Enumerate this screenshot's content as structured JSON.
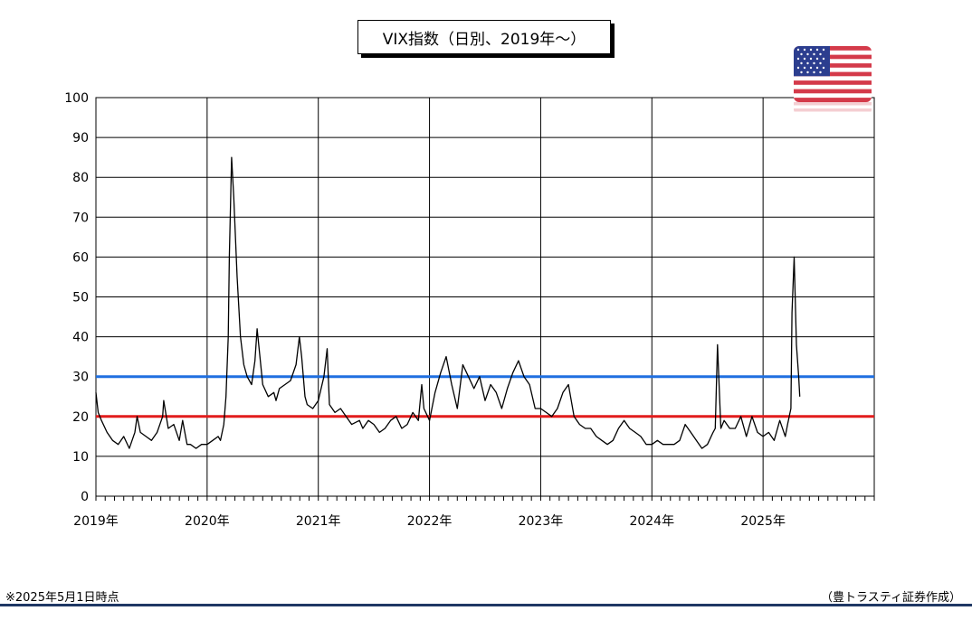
{
  "chart_data": {
    "type": "line",
    "title": "VIX指数（日別、2019年～）",
    "ylim": [
      0,
      100
    ],
    "yticks": [
      "0",
      "10",
      "20",
      "30",
      "40",
      "50",
      "60",
      "70",
      "80",
      "90",
      "100"
    ],
    "xlim": [
      2019.0,
      2026.0
    ],
    "xticks": [
      {
        "x": 2019,
        "label": "2019年"
      },
      {
        "x": 2020,
        "label": "2020年"
      },
      {
        "x": 2021,
        "label": "2021年"
      },
      {
        "x": 2022,
        "label": "2022年"
      },
      {
        "x": 2023,
        "label": "2023年"
      },
      {
        "x": 2024,
        "label": "2024年"
      },
      {
        "x": 2025,
        "label": "2025年"
      }
    ],
    "grid": true,
    "reference_lines": [
      {
        "value": 30,
        "color": "#1f6fe0"
      },
      {
        "value": 20,
        "color": "#e21c1c"
      }
    ],
    "series": [
      {
        "color": "#000000",
        "x": [
          2019.0,
          2019.02,
          2019.05,
          2019.1,
          2019.15,
          2019.2,
          2019.25,
          2019.3,
          2019.35,
          2019.37,
          2019.4,
          2019.45,
          2019.5,
          2019.55,
          2019.6,
          2019.61,
          2019.65,
          2019.7,
          2019.75,
          2019.78,
          2019.82,
          2019.85,
          2019.9,
          2019.95,
          2020.0,
          2020.05,
          2020.1,
          2020.12,
          2020.15,
          2020.17,
          2020.19,
          2020.2,
          2020.22,
          2020.24,
          2020.27,
          2020.3,
          2020.33,
          2020.36,
          2020.4,
          2020.43,
          2020.45,
          2020.5,
          2020.55,
          2020.6,
          2020.62,
          2020.65,
          2020.7,
          2020.75,
          2020.8,
          2020.83,
          2020.85,
          2020.88,
          2020.9,
          2020.95,
          2021.0,
          2021.05,
          2021.08,
          2021.1,
          2021.15,
          2021.2,
          2021.25,
          2021.3,
          2021.37,
          2021.4,
          2021.45,
          2021.5,
          2021.55,
          2021.6,
          2021.65,
          2021.7,
          2021.75,
          2021.8,
          2021.85,
          2021.9,
          2021.93,
          2021.95,
          2022.0,
          2022.05,
          2022.1,
          2022.15,
          2022.2,
          2022.25,
          2022.3,
          2022.35,
          2022.4,
          2022.45,
          2022.5,
          2022.55,
          2022.6,
          2022.65,
          2022.7,
          2022.75,
          2022.8,
          2022.85,
          2022.9,
          2022.95,
          2023.0,
          2023.05,
          2023.1,
          2023.15,
          2023.2,
          2023.25,
          2023.3,
          2023.35,
          2023.4,
          2023.45,
          2023.5,
          2023.55,
          2023.6,
          2023.65,
          2023.7,
          2023.75,
          2023.8,
          2023.85,
          2023.9,
          2023.95,
          2024.0,
          2024.05,
          2024.1,
          2024.15,
          2024.2,
          2024.25,
          2024.3,
          2024.35,
          2024.4,
          2024.45,
          2024.5,
          2024.55,
          2024.57,
          2024.59,
          2024.62,
          2024.65,
          2024.7,
          2024.75,
          2024.8,
          2024.85,
          2024.9,
          2024.95,
          2025.0,
          2025.05,
          2025.1,
          2025.15,
          2025.2,
          2025.22,
          2025.25,
          2025.26,
          2025.28,
          2025.3,
          2025.32,
          2025.33
        ],
        "y": [
          26,
          21,
          19,
          16,
          14,
          13,
          15,
          12,
          16,
          20,
          16,
          15,
          14,
          16,
          20,
          24,
          17,
          18,
          14,
          19,
          13,
          13,
          12,
          13,
          13,
          14,
          15,
          14,
          18,
          25,
          40,
          60,
          85,
          75,
          55,
          40,
          33,
          30,
          28,
          34,
          42,
          28,
          25,
          26,
          24,
          27,
          28,
          29,
          33,
          40,
          35,
          25,
          23,
          22,
          24,
          30,
          37,
          23,
          21,
          22,
          20,
          18,
          19,
          17,
          19,
          18,
          16,
          17,
          19,
          20,
          17,
          18,
          21,
          19,
          28,
          22,
          19,
          26,
          31,
          35,
          28,
          22,
          33,
          30,
          27,
          30,
          24,
          28,
          26,
          22,
          27,
          31,
          34,
          30,
          28,
          22,
          22,
          21,
          20,
          22,
          26,
          28,
          20,
          18,
          17,
          17,
          15,
          14,
          13,
          14,
          17,
          19,
          17,
          16,
          15,
          13,
          13,
          14,
          13,
          13,
          13,
          14,
          18,
          16,
          14,
          12,
          13,
          16,
          17,
          38,
          17,
          19,
          17,
          17,
          20,
          15,
          20,
          16,
          15,
          16,
          14,
          19,
          15,
          18,
          22,
          46,
          60,
          38,
          30,
          25
        ]
      }
    ]
  },
  "footnote": "※2025年5月1日時点",
  "credit": "（豊トラスティ証券作成）",
  "flag_icon": "us-flag-icon"
}
